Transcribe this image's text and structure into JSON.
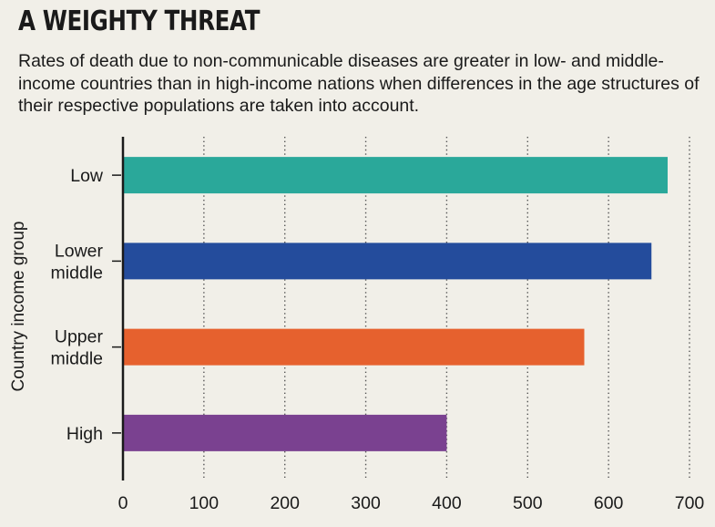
{
  "title": "A WEIGHTY THREAT",
  "subtitle": "Rates of death due to non-communicable diseases are greater in low- and middle-income countries than in high-income nations when differences in the age structures of their respective populations are taken into account.",
  "chart_data": {
    "type": "bar",
    "orientation": "horizontal",
    "ylabel": "Country income group",
    "xlabel": "",
    "xlim": [
      0,
      700
    ],
    "xticks": [
      0,
      100,
      200,
      300,
      400,
      500,
      600,
      700
    ],
    "grid": "vertical dotted",
    "categories": [
      {
        "lines": [
          "Low"
        ],
        "value": 673,
        "color": "#2aa89a"
      },
      {
        "lines": [
          "Lower",
          "middle"
        ],
        "value": 653,
        "color": "#244c9c"
      },
      {
        "lines": [
          "Upper",
          "middle"
        ],
        "value": 570,
        "color": "#e6612e"
      },
      {
        "lines": [
          "High"
        ],
        "value": 400,
        "color": "#7a4190"
      }
    ]
  }
}
